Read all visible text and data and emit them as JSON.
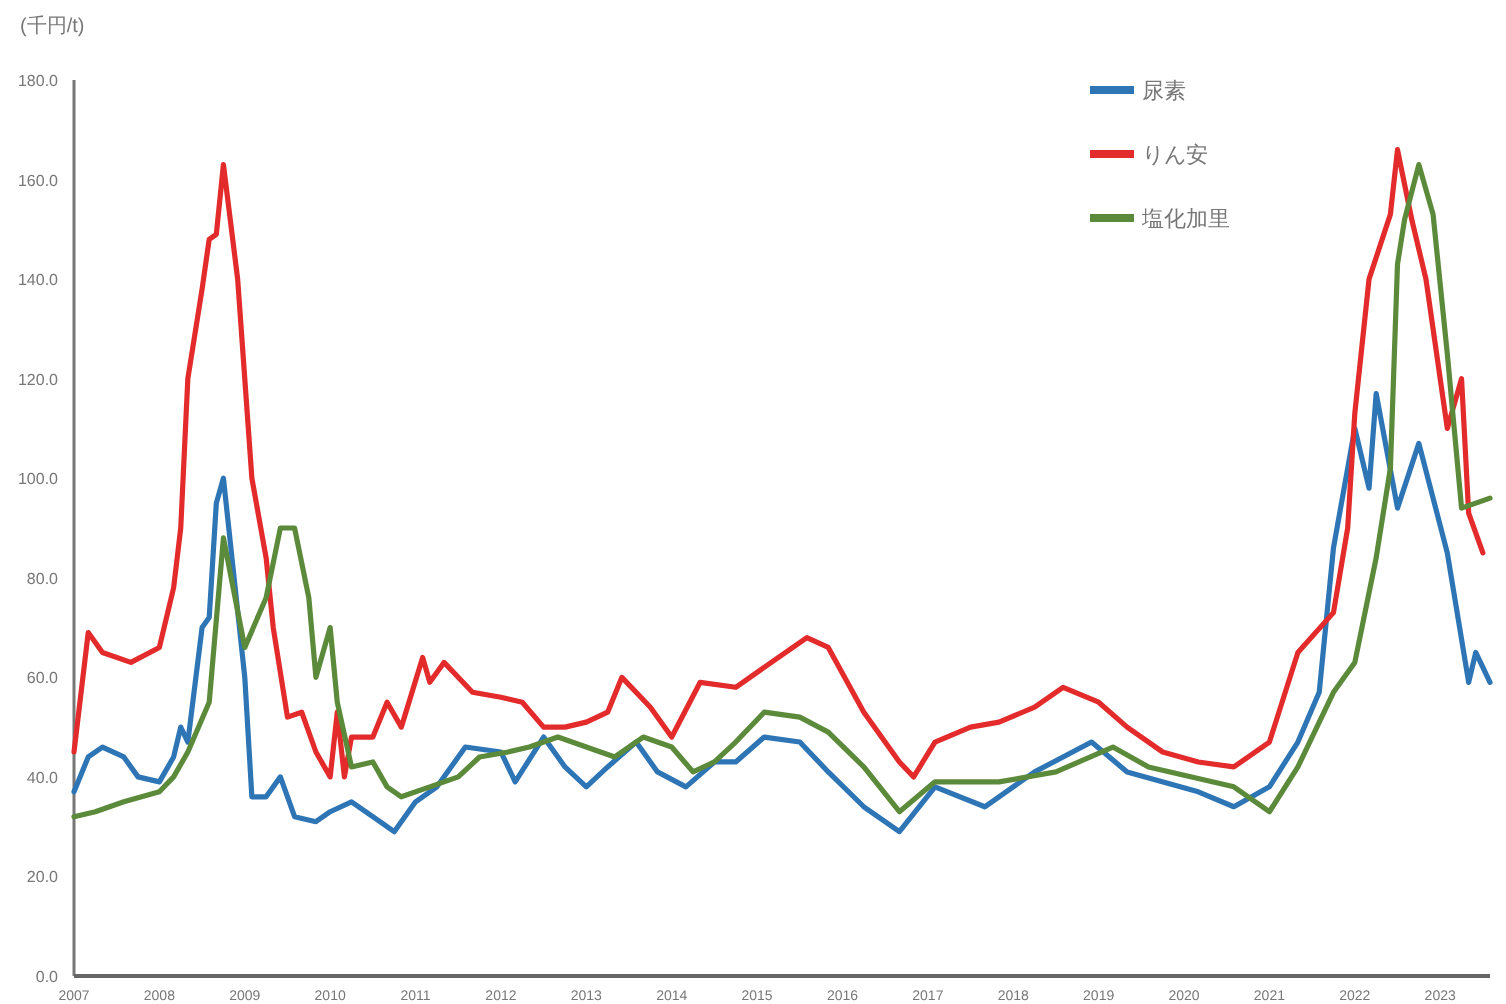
{
  "chart_data": {
    "type": "line",
    "ylabel": "(千円/t)",
    "legend": "top right",
    "marker": "none",
    "line_style": "solid",
    "xlim": [
      "2007-01",
      "2023-08"
    ],
    "xticks": [
      {
        "value": "2007-01",
        "label": "2007"
      },
      {
        "value": "2008-01",
        "label": "2008"
      },
      {
        "value": "2009-01",
        "label": "2009"
      },
      {
        "value": "2010-01",
        "label": "2010"
      },
      {
        "value": "2011-01",
        "label": "2011"
      },
      {
        "value": "2012-01",
        "label": "2012"
      },
      {
        "value": "2013-01",
        "label": "2013"
      },
      {
        "value": "2014-01",
        "label": "2014"
      },
      {
        "value": "2015-01",
        "label": "2015"
      },
      {
        "value": "2016-01",
        "label": "2016"
      },
      {
        "value": "2017-01",
        "label": "2017"
      },
      {
        "value": "2018-01",
        "label": "2018"
      },
      {
        "value": "2019-01",
        "label": "2019"
      },
      {
        "value": "2020-01",
        "label": "2020"
      },
      {
        "value": "2021-01",
        "label": "2021"
      },
      {
        "value": "2022-01",
        "label": "2022"
      },
      {
        "value": "2023-01",
        "label": "2023"
      }
    ],
    "ylim": [
      0,
      180
    ],
    "yticks": [
      {
        "value": 0,
        "label": "0.0"
      },
      {
        "value": 20,
        "label": "20.0"
      },
      {
        "value": 40,
        "label": "40.0"
      },
      {
        "value": 60,
        "label": "60.0"
      },
      {
        "value": 80,
        "label": "80.0"
      },
      {
        "value": 100,
        "label": "100.0"
      },
      {
        "value": 120,
        "label": "120.0"
      },
      {
        "value": 140,
        "label": "140.0"
      },
      {
        "value": 160,
        "label": "160.0"
      },
      {
        "value": 180,
        "label": "180.0"
      }
    ],
    "series": [
      {
        "name": "尿素",
        "color": "#2e75b6",
        "x": [
          "2007-01",
          "2007-03",
          "2007-05",
          "2007-08",
          "2007-10",
          "2008-01",
          "2008-03",
          "2008-04",
          "2008-05",
          "2008-07",
          "2008-08",
          "2008-09",
          "2008-10",
          "2009-01",
          "2009-02",
          "2009-04",
          "2009-06",
          "2009-08",
          "2009-11",
          "2010-01",
          "2010-04",
          "2010-08",
          "2010-10",
          "2011-01",
          "2011-04",
          "2011-08",
          "2012-01",
          "2012-03",
          "2012-07",
          "2012-10",
          "2013-01",
          "2013-04",
          "2013-08",
          "2013-11",
          "2014-03",
          "2014-07",
          "2014-10",
          "2015-02",
          "2015-07",
          "2015-11",
          "2016-04",
          "2016-09",
          "2017-02",
          "2017-09",
          "2018-04",
          "2018-12",
          "2019-05",
          "2020-03",
          "2020-08",
          "2021-01",
          "2021-05",
          "2021-08",
          "2021-10",
          "2022-01",
          "2022-03",
          "2022-04",
          "2022-07",
          "2022-10",
          "2023-02",
          "2023-05",
          "2023-06",
          "2023-08"
        ],
        "values": [
          37,
          44,
          46,
          44,
          40,
          39,
          44,
          50,
          47,
          70,
          72,
          95,
          100,
          60,
          36,
          36,
          40,
          32,
          31,
          33,
          35,
          31,
          29,
          35,
          38,
          46,
          45,
          39,
          48,
          42,
          38,
          42,
          47,
          41,
          38,
          43,
          43,
          48,
          47,
          41,
          34,
          29,
          38,
          34,
          41,
          47,
          41,
          37,
          34,
          38,
          47,
          57,
          86,
          110,
          98,
          117,
          94,
          107,
          85,
          59,
          65,
          59
        ]
      },
      {
        "name": "りん安",
        "color": "#e32b2b",
        "x": [
          "2007-01",
          "2007-03",
          "2007-05",
          "2007-09",
          "2008-01",
          "2008-03",
          "2008-04",
          "2008-05",
          "2008-07",
          "2008-08",
          "2008-09",
          "2008-10",
          "2008-12",
          "2009-02",
          "2009-04",
          "2009-05",
          "2009-07",
          "2009-09",
          "2009-11",
          "2010-01",
          "2010-02",
          "2010-03",
          "2010-04",
          "2010-07",
          "2010-09",
          "2010-11",
          "2011-02",
          "2011-03",
          "2011-05",
          "2011-09",
          "2012-01",
          "2012-04",
          "2012-07",
          "2012-10",
          "2013-01",
          "2013-04",
          "2013-06",
          "2013-10",
          "2014-01",
          "2014-05",
          "2014-10",
          "2015-08",
          "2015-11",
          "2016-04",
          "2016-09",
          "2016-11",
          "2017-02",
          "2017-07",
          "2017-11",
          "2018-04",
          "2018-08",
          "2019-01",
          "2019-05",
          "2019-10",
          "2020-03",
          "2020-08",
          "2021-01",
          "2021-05",
          "2021-10",
          "2021-12",
          "2022-01",
          "2022-03",
          "2022-06",
          "2022-07",
          "2022-09",
          "2022-11",
          "2023-02",
          "2023-04",
          "2023-05",
          "2023-07"
        ],
        "values": [
          45,
          69,
          65,
          63,
          66,
          78,
          90,
          120,
          138,
          148,
          149,
          163,
          140,
          100,
          84,
          70,
          52,
          53,
          45,
          40,
          53,
          40,
          48,
          48,
          55,
          50,
          64,
          59,
          63,
          57,
          56,
          55,
          50,
          50,
          51,
          53,
          60,
          54,
          48,
          59,
          58,
          68,
          66,
          53,
          43,
          40,
          47,
          50,
          51,
          54,
          58,
          55,
          50,
          45,
          43,
          42,
          47,
          65,
          73,
          90,
          113,
          140,
          153,
          166,
          152,
          140,
          110,
          120,
          93,
          85
        ]
      },
      {
        "name": "塩化加里",
        "color": "#5b8a3a",
        "x": [
          "2007-01",
          "2007-04",
          "2007-08",
          "2008-01",
          "2008-03",
          "2008-05",
          "2008-08",
          "2008-10",
          "2009-01",
          "2009-04",
          "2009-06",
          "2009-08",
          "2009-10",
          "2009-11",
          "2010-01",
          "2010-02",
          "2010-04",
          "2010-07",
          "2010-09",
          "2010-11",
          "2011-03",
          "2011-07",
          "2011-10",
          "2012-02",
          "2012-05",
          "2012-09",
          "2013-01",
          "2013-05",
          "2013-09",
          "2014-01",
          "2014-04",
          "2014-07",
          "2014-10",
          "2015-02",
          "2015-07",
          "2015-11",
          "2016-04",
          "2016-09",
          "2017-02",
          "2017-11",
          "2018-07",
          "2019-03",
          "2019-08",
          "2020-08",
          "2021-01",
          "2021-05",
          "2021-10",
          "2022-01",
          "2022-04",
          "2022-06",
          "2022-07",
          "2022-08",
          "2022-10",
          "2022-12",
          "2023-02",
          "2023-04",
          "2023-08"
        ],
        "values": [
          32,
          33,
          35,
          37,
          40,
          45,
          55,
          88,
          66,
          76,
          90,
          90,
          76,
          60,
          70,
          55,
          42,
          43,
          38,
          36,
          38,
          40,
          44,
          45,
          46,
          48,
          46,
          44,
          48,
          46,
          41,
          43,
          47,
          53,
          52,
          49,
          42,
          33,
          39,
          39,
          41,
          46,
          42,
          38,
          33,
          42,
          57,
          63,
          84,
          102,
          143,
          152,
          163,
          153,
          125,
          94,
          96
        ]
      }
    ]
  }
}
